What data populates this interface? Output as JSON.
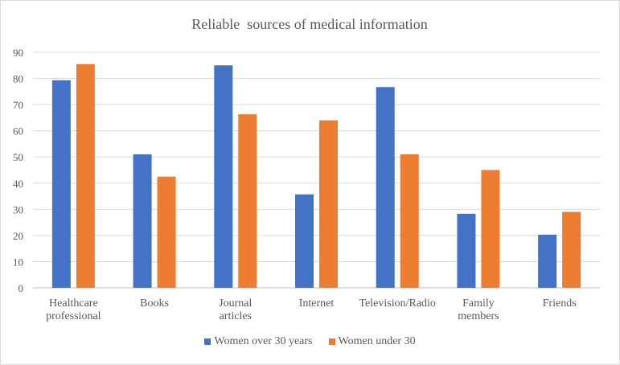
{
  "chart_data": {
    "type": "bar",
    "title": "Reliable  sources of medical information",
    "categories": [
      [
        "Healthcare",
        "professional"
      ],
      [
        "Books"
      ],
      [
        "Journal",
        "articles"
      ],
      [
        "Internet"
      ],
      [
        "Television/Radio"
      ],
      [
        "Family",
        "members"
      ],
      [
        "Friends"
      ]
    ],
    "series": [
      {
        "name": "Women over 30 years",
        "color": "#4472c4",
        "values": [
          79.3,
          51,
          85,
          35.7,
          76.7,
          28.3,
          20.3
        ]
      },
      {
        "name": "Women under 30",
        "color": "#ed7d31",
        "values": [
          85.5,
          42.5,
          66.3,
          64,
          51,
          45,
          29
        ]
      }
    ],
    "ylim": [
      0,
      90
    ],
    "yticks": [
      0,
      10,
      20,
      30,
      40,
      50,
      60,
      70,
      80,
      90
    ],
    "grid": true,
    "legend_position": "bottom"
  }
}
